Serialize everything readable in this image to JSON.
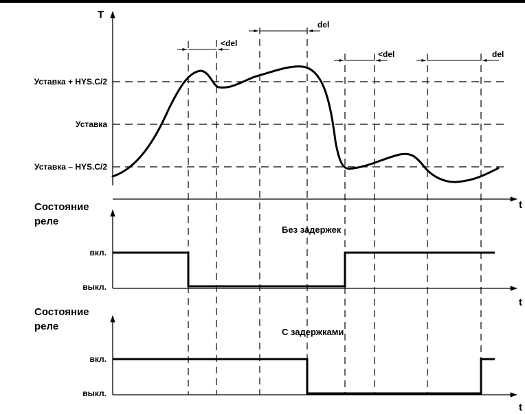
{
  "top_rule_color": "#000000",
  "axes": {
    "temp_axis_label": "T",
    "time_axis_label": "t"
  },
  "levels": {
    "upper": "Уставка + HYS.C/2",
    "setpoint": "Уставка",
    "lower": "Уставка – HYS.C/2"
  },
  "delays": {
    "d1": "<del",
    "d2": "del",
    "d3": "<del",
    "d4": "del"
  },
  "relay_panels": [
    {
      "state_label_line1": "Состояние",
      "state_label_line2": "реле",
      "caption": "Без задержек",
      "on_label": "вкл.",
      "off_label": "выкл."
    },
    {
      "state_label_line1": "Состояние",
      "state_label_line2": "реле",
      "caption": "С задержками",
      "on_label": "вкл.",
      "off_label": "выкл."
    }
  ]
}
